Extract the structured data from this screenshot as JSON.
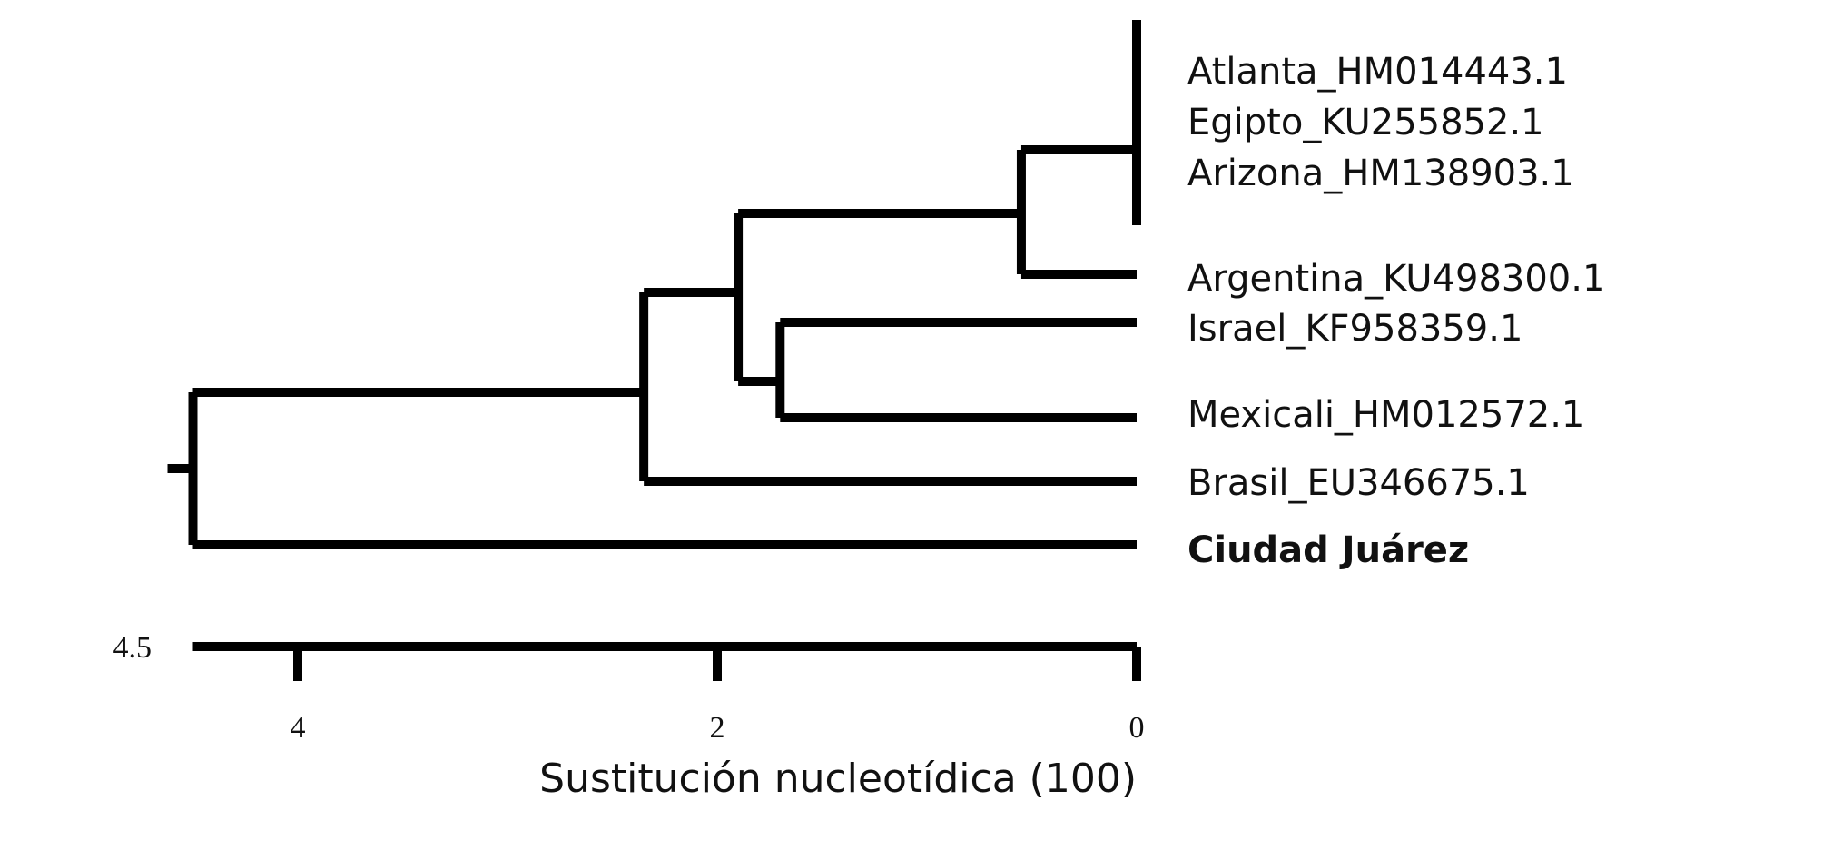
{
  "tree": {
    "leaves": [
      {
        "id": "atlanta",
        "label": "Atlanta_HM014443.1",
        "bold": false
      },
      {
        "id": "egipto",
        "label": "Egipto_KU255852.1",
        "bold": false
      },
      {
        "id": "arizona",
        "label": "Arizona_HM138903.1",
        "bold": false
      },
      {
        "id": "argentina",
        "label": "Argentina_KU498300.1",
        "bold": false
      },
      {
        "id": "israel",
        "label": "Israel_KF958359.1",
        "bold": false
      },
      {
        "id": "mexicali",
        "label": "Mexicali_HM012572.1",
        "bold": false
      },
      {
        "id": "brasil",
        "label": "Brasil_EU346675.1",
        "bold": false
      },
      {
        "id": "juarez",
        "label": "Ciudad Juárez",
        "bold": true
      }
    ],
    "nodes": [
      {
        "id": "n_top",
        "height": 0.0,
        "children": [
          "atlanta",
          "egipto",
          "arizona"
        ]
      },
      {
        "id": "n_arg",
        "height": 0.55,
        "children": [
          "n_top",
          "argentina"
        ]
      },
      {
        "id": "n_is_mx",
        "height": 1.7,
        "children": [
          "israel",
          "mexicali"
        ]
      },
      {
        "id": "n_mid",
        "height": 1.9,
        "children": [
          "n_arg",
          "n_is_mx"
        ]
      },
      {
        "id": "n_br",
        "height": 2.35,
        "children": [
          "n_mid",
          "brasil"
        ]
      },
      {
        "id": "root",
        "height": 4.5,
        "children": [
          "n_br",
          "juarez"
        ]
      }
    ]
  },
  "axis": {
    "max_value": "4.5",
    "ticks": [
      {
        "value": 4,
        "label": "4"
      },
      {
        "value": 2,
        "label": "2"
      },
      {
        "value": 0,
        "label": "0"
      }
    ],
    "title": "Sustitución nucleotídica (100)"
  }
}
